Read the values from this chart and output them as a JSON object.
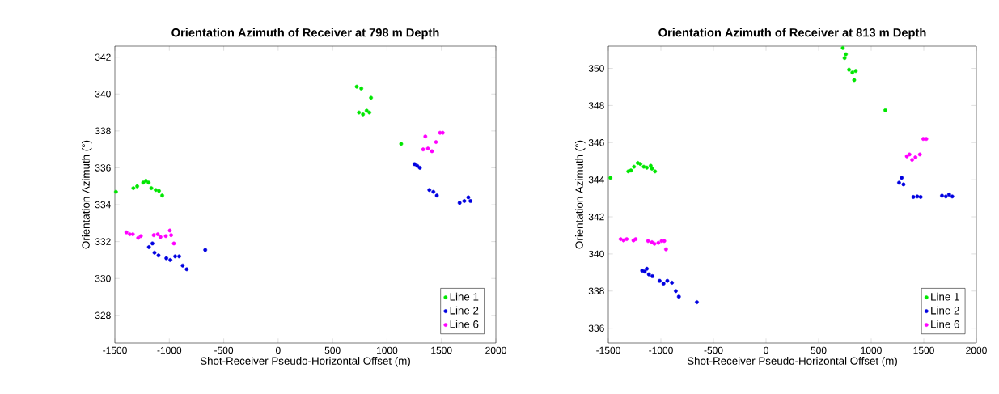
{
  "chart_data": [
    {
      "type": "scatter",
      "title": "Orientation Azimuth of Receiver at 798 m Depth",
      "xlabel": "Shot-Receiver Pseudo-Horizontal Offset (m)",
      "ylabel": "Orientation Azimuth (°)",
      "xlim": [
        -1500,
        2000
      ],
      "ylim": [
        326.5,
        342.6
      ],
      "xticks": [
        -1500,
        -1000,
        -500,
        0,
        500,
        1000,
        1500,
        2000
      ],
      "yticks": [
        328,
        330,
        332,
        334,
        336,
        338,
        340,
        342
      ],
      "marker": "circle",
      "legend": "bottom right",
      "series": [
        {
          "name": "Line 1",
          "color": "#00e600",
          "x": [
            -1490,
            -1330,
            -1295,
            -1240,
            -1215,
            -1190,
            -1165,
            -1125,
            -1095,
            -1065,
            722,
            764,
            853,
            742,
            779,
            813,
            838,
            1130
          ],
          "values": [
            334.7,
            334.9,
            335.0,
            335.2,
            335.3,
            335.2,
            334.9,
            334.8,
            334.75,
            334.5,
            340.4,
            340.3,
            339.8,
            339.0,
            338.9,
            339.1,
            339.0,
            337.3
          ]
        },
        {
          "name": "Line 2",
          "color": "#0000e0",
          "x": [
            -1187,
            -1155,
            -1136,
            -1099,
            -1027,
            -990,
            -946,
            -909,
            -877,
            -840,
            -670,
            1253,
            1278,
            1302,
            1389,
            1426,
            1458,
            1667,
            1710,
            1747,
            1767
          ],
          "values": [
            331.7,
            331.9,
            331.4,
            331.25,
            331.1,
            331.0,
            331.2,
            331.2,
            330.7,
            330.5,
            331.55,
            336.2,
            336.1,
            336.0,
            334.8,
            334.7,
            334.5,
            334.1,
            334.2,
            334.4,
            334.2
          ]
        },
        {
          "name": "Line 6",
          "color": "#ff00ff",
          "x": [
            -1394,
            -1364,
            -1335,
            -1286,
            -1261,
            -1143,
            -1106,
            -1081,
            -1032,
            -995,
            -983,
            -958,
            1352,
            1332,
            1376,
            1413,
            1450,
            1487,
            1512
          ],
          "values": [
            332.5,
            332.4,
            332.4,
            332.2,
            332.3,
            332.35,
            332.4,
            332.25,
            332.3,
            332.6,
            332.35,
            331.9,
            337.7,
            337.0,
            337.05,
            336.9,
            337.4,
            337.9,
            337.9
          ]
        }
      ]
    },
    {
      "type": "scatter",
      "title": "Orientation Azimuth of Receiver at 813 m Depth",
      "xlabel": "Shot-Receiver Pseudo-Horizontal Offset (m)",
      "ylabel": "Orientation Azimuth (°)",
      "xlim": [
        -1500,
        2000
      ],
      "ylim": [
        335.2,
        351.2
      ],
      "xticks": [
        -1500,
        -1000,
        -500,
        0,
        500,
        1000,
        1500,
        2000
      ],
      "yticks": [
        336,
        338,
        340,
        342,
        344,
        346,
        348,
        350
      ],
      "marker": "circle",
      "legend": "bottom right",
      "series": [
        {
          "name": "Line 1",
          "color": "#00e600",
          "x": [
            -1480,
            -1310,
            -1285,
            -1256,
            -1220,
            -1195,
            -1163,
            -1134,
            -1097,
            -1085,
            -1056,
            730,
            759,
            747,
            789,
            821,
            853,
            838,
            1134
          ],
          "values": [
            344.1,
            344.45,
            344.5,
            344.7,
            344.9,
            344.85,
            344.7,
            344.65,
            344.75,
            344.6,
            344.45,
            351.1,
            350.76,
            350.56,
            349.93,
            349.78,
            349.86,
            349.37,
            347.74
          ]
        },
        {
          "name": "Line 2",
          "color": "#0000e0",
          "x": [
            -1178,
            -1154,
            -1134,
            -1114,
            -1081,
            -1012,
            -975,
            -939,
            -895,
            -858,
            -829,
            -658,
            1265,
            1290,
            1307,
            1401,
            1438,
            1470,
            1673,
            1710,
            1741,
            1771
          ],
          "values": [
            339.1,
            339.05,
            339.2,
            338.9,
            338.8,
            338.55,
            338.4,
            338.55,
            338.45,
            338.0,
            337.7,
            337.4,
            343.84,
            344.1,
            343.75,
            343.07,
            343.1,
            343.07,
            343.14,
            343.1,
            343.2,
            343.1
          ]
        },
        {
          "name": "Line 6",
          "color": "#ff00ff",
          "x": [
            -1383,
            -1354,
            -1325,
            -1261,
            -1240,
            -1122,
            -1085,
            -1061,
            -1024,
            -993,
            -968,
            -951,
            1339,
            1364,
            1389,
            1421,
            1463,
            1495,
            1524
          ],
          "values": [
            340.8,
            340.73,
            340.8,
            340.73,
            340.8,
            340.7,
            340.63,
            340.55,
            340.6,
            340.7,
            340.7,
            340.25,
            345.26,
            345.36,
            345.07,
            345.21,
            345.36,
            346.2,
            346.2
          ]
        }
      ]
    }
  ]
}
